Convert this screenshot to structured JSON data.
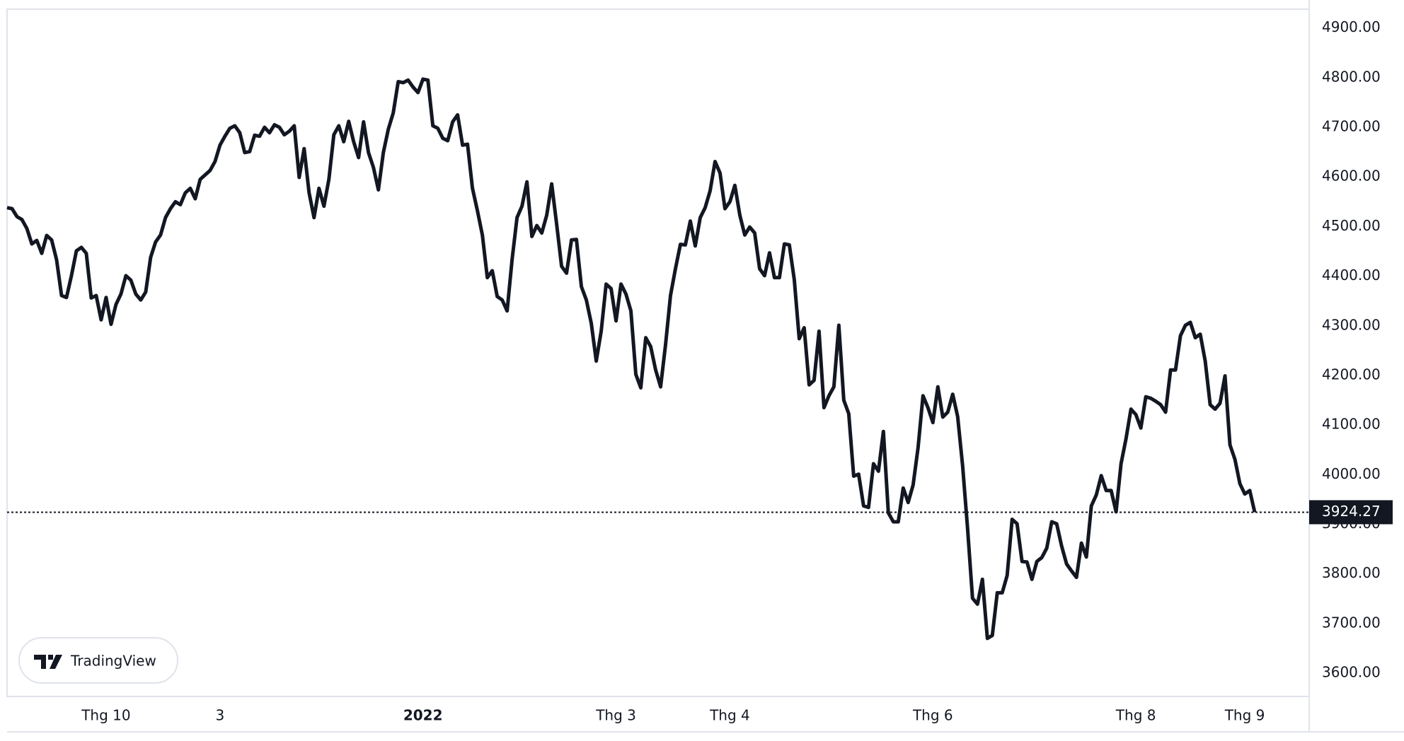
{
  "chart_data": {
    "type": "line",
    "watermark": "TradingView",
    "color": "#131722",
    "values": [
      4538,
      4536,
      4520,
      4514,
      4496,
      4465,
      4472,
      4446,
      4482,
      4473,
      4433,
      4361,
      4357,
      4401,
      4451,
      4458,
      4446,
      4356,
      4361,
      4312,
      4357,
      4303,
      4343,
      4364,
      4401,
      4392,
      4364,
      4352,
      4368,
      4438,
      4469,
      4483,
      4518,
      4536,
      4550,
      4544,
      4568,
      4577,
      4556,
      4595,
      4604,
      4613,
      4631,
      4664,
      4682,
      4698,
      4703,
      4689,
      4649,
      4651,
      4684,
      4682,
      4700,
      4689,
      4705,
      4700,
      4685,
      4692,
      4703,
      4599,
      4657,
      4568,
      4518,
      4577,
      4541,
      4595,
      4685,
      4703,
      4671,
      4712,
      4671,
      4639,
      4711,
      4649,
      4619,
      4574,
      4649,
      4696,
      4729,
      4792,
      4790,
      4795,
      4781,
      4770,
      4797,
      4795,
      4703,
      4698,
      4678,
      4673,
      4711,
      4725,
      4664,
      4666,
      4577,
      4532,
      4483,
      4397,
      4411,
      4359,
      4352,
      4330,
      4433,
      4518,
      4541,
      4590,
      4480,
      4502,
      4487,
      4523,
      4586,
      4505,
      4420,
      4406,
      4473,
      4474,
      4379,
      4352,
      4305,
      4229,
      4289,
      4384,
      4375,
      4310,
      4384,
      4364,
      4330,
      4202,
      4175,
      4276,
      4258,
      4211,
      4177,
      4262,
      4361,
      4415,
      4464,
      4463,
      4511,
      4461,
      4518,
      4538,
      4572,
      4631,
      4608,
      4536,
      4550,
      4583,
      4523,
      4483,
      4499,
      4487,
      4415,
      4401,
      4447,
      4397,
      4397,
      4465,
      4463,
      4393,
      4274,
      4296,
      4181,
      4190,
      4289,
      4135,
      4159,
      4177,
      4301,
      4150,
      4123,
      3997,
      4001,
      3937,
      3934,
      4022,
      4007,
      4087,
      3923,
      3905,
      3905,
      3973,
      3944,
      3979,
      4054,
      4159,
      4135,
      4105,
      4177,
      4116,
      4126,
      4162,
      4117,
      4018,
      3892,
      3751,
      3739,
      3789,
      3670,
      3676,
      3762,
      3762,
      3797,
      3910,
      3901,
      3825,
      3824,
      3789,
      3825,
      3833,
      3852,
      3905,
      3901,
      3856,
      3820,
      3806,
      3793,
      3862,
      3834,
      3937,
      3959,
      3998,
      3968,
      3968,
      3925,
      4022,
      4072,
      4132,
      4121,
      4094,
      4157,
      4154,
      4148,
      4141,
      4126,
      4211,
      4211,
      4280,
      4301,
      4307,
      4276,
      4283,
      4229,
      4141,
      4132,
      4144,
      4199,
      4060,
      4031,
      3982,
      3961,
      3968,
      3924.27
    ],
    "xlim": [
      0,
      263
    ],
    "xticks": [
      {
        "value": 20,
        "label": "Thg 10"
      },
      {
        "value": 43,
        "label": "3"
      },
      {
        "value": 84,
        "label": "2022"
      },
      {
        "value": 123,
        "label": "Thg 3"
      },
      {
        "value": 146,
        "label": "Thg 4"
      },
      {
        "value": 187,
        "label": "Thg 6"
      },
      {
        "value": 228,
        "label": "Thg 8"
      },
      {
        "value": 250,
        "label": "Thg 9"
      }
    ],
    "ylim": [
      3553,
      4938
    ],
    "yticks": [
      {
        "value": 3600,
        "label": "3600.00"
      },
      {
        "value": 3700,
        "label": "3700.00"
      },
      {
        "value": 3800,
        "label": "3800.00"
      },
      {
        "value": 3900,
        "label": "3900.00"
      },
      {
        "value": 4000,
        "label": "4000.00"
      },
      {
        "value": 4100,
        "label": "4100.00"
      },
      {
        "value": 4200,
        "label": "4200.00"
      },
      {
        "value": 4300,
        "label": "4300.00"
      },
      {
        "value": 4400,
        "label": "4400.00"
      },
      {
        "value": 4500,
        "label": "4500.00"
      },
      {
        "value": 4600,
        "label": "4600.00"
      },
      {
        "value": 4700,
        "label": "4700.00"
      },
      {
        "value": 4800,
        "label": "4800.00"
      },
      {
        "value": 4900,
        "label": "4900.00"
      }
    ]
  }
}
